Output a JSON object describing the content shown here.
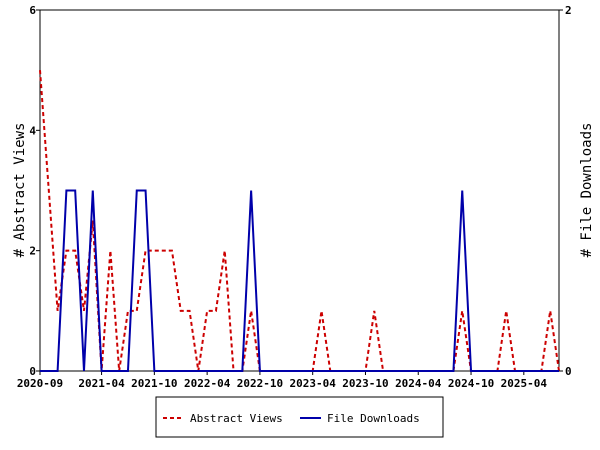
{
  "chart_data": {
    "type": "line",
    "y_label": "# Abstract Views",
    "y2_label": "# File Downloads",
    "x": [
      "2020-09",
      null,
      null,
      null,
      null,
      null,
      null,
      "2021-04",
      null,
      null,
      null,
      null,
      null,
      "2021-10",
      null,
      null,
      null,
      null,
      null,
      "2022-04",
      null,
      null,
      null,
      null,
      null,
      "2022-10",
      null,
      null,
      null,
      null,
      null,
      "2023-04",
      null,
      null,
      null,
      null,
      null,
      "2023-10",
      null,
      null,
      null,
      null,
      null,
      "2024-04",
      null,
      null,
      null,
      null,
      null,
      "2024-10",
      null,
      null,
      null,
      null,
      null,
      "2025-04",
      null,
      null,
      null,
      null
    ],
    "series": [
      {
        "name": "Abstract Views",
        "color": "#cc0000",
        "axis": "y",
        "dash": true,
        "values": [
          5,
          3,
          1,
          2,
          2,
          1,
          2.5,
          0,
          2,
          0,
          1,
          1,
          2,
          2,
          2,
          2,
          1,
          1,
          0,
          1,
          1,
          2,
          0,
          0,
          1,
          0,
          0,
          0,
          0,
          0,
          0,
          0,
          1,
          0,
          0,
          0,
          0,
          0,
          1,
          0,
          0,
          0,
          0,
          0,
          0,
          0,
          0,
          0,
          1,
          0,
          0,
          0,
          0,
          1,
          0,
          0,
          0,
          0,
          1,
          0
        ]
      },
      {
        "name": "File Downloads",
        "color": "#0000aa",
        "axis": "y2",
        "dash": false,
        "values": [
          0,
          0,
          0,
          1,
          1,
          0,
          1,
          0,
          0,
          0,
          0,
          1,
          1,
          0,
          0,
          0,
          0,
          0,
          0,
          0,
          0,
          0,
          0,
          0,
          1,
          0,
          0,
          0,
          0,
          0,
          0,
          0,
          0,
          0,
          0,
          0,
          0,
          0,
          0,
          0,
          0,
          0,
          0,
          0,
          0,
          0,
          0,
          0,
          1,
          0,
          0,
          0,
          0,
          0,
          0,
          0,
          0,
          0,
          0,
          0
        ]
      }
    ],
    "ylim": [
      0,
      6
    ],
    "yticks": [
      0,
      2,
      4,
      6
    ],
    "y2lim": [
      0,
      2
    ],
    "y2ticks": [
      0,
      2
    ]
  }
}
